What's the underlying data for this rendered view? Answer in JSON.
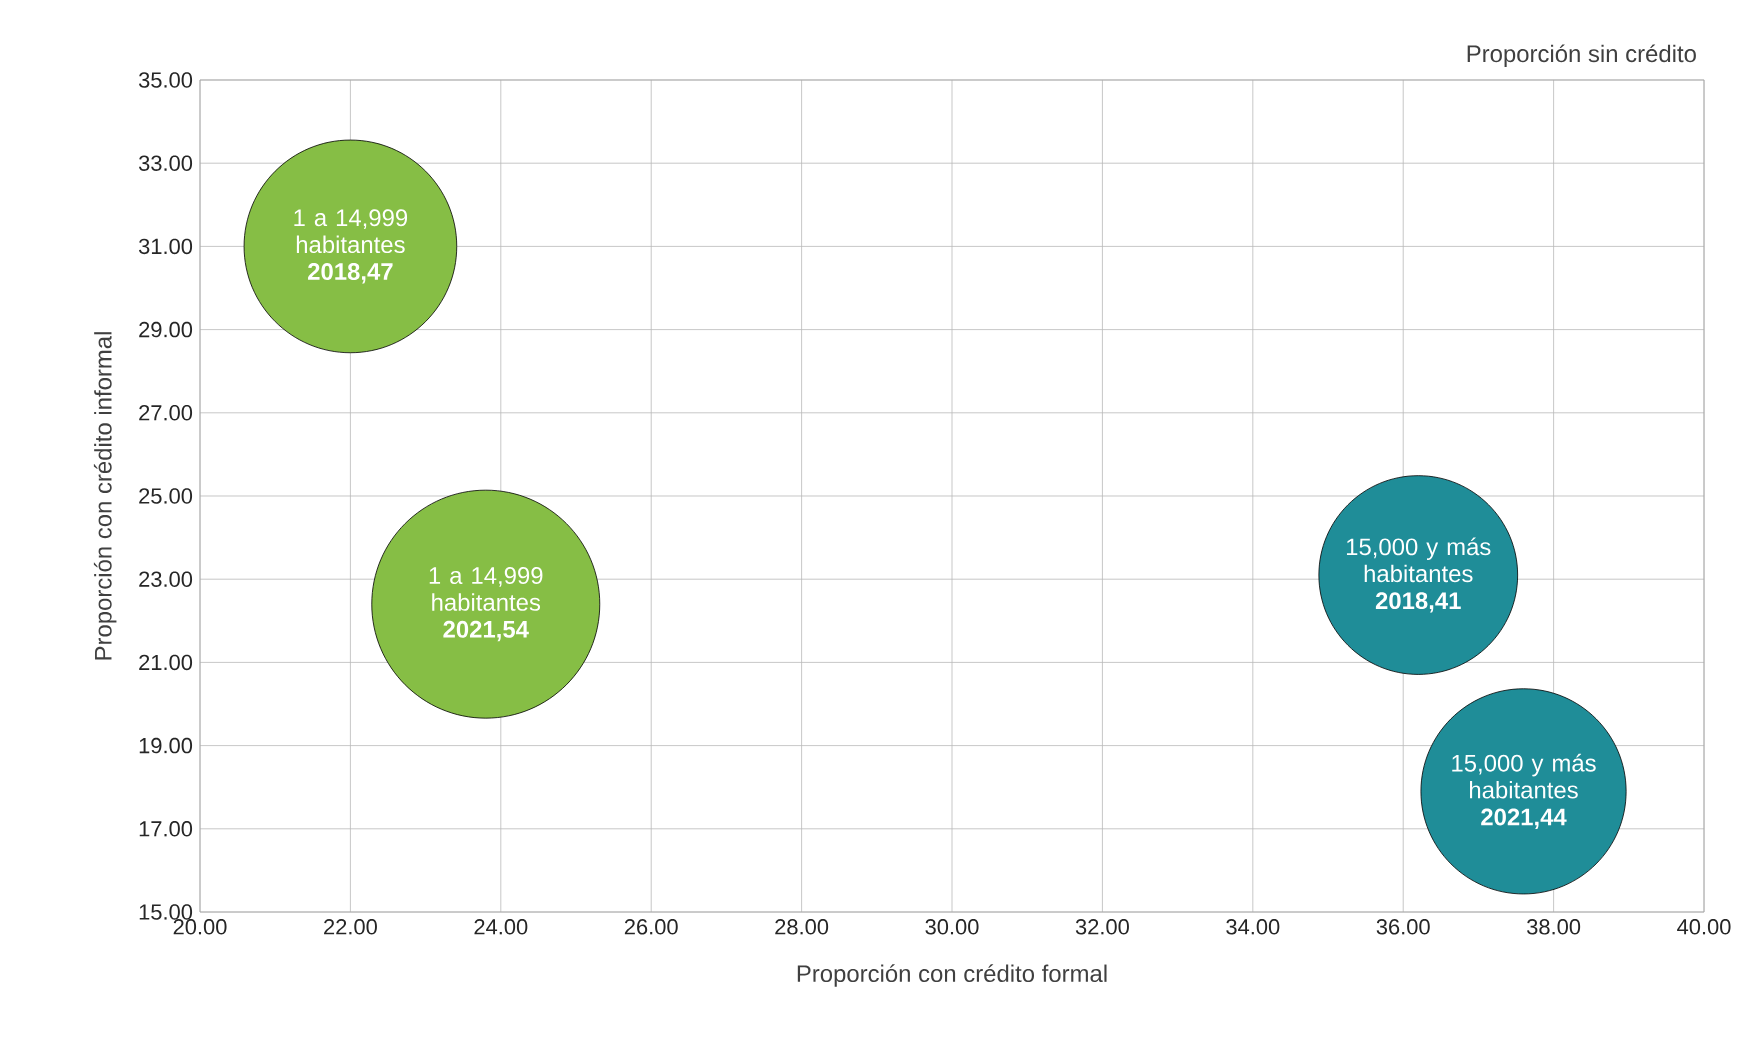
{
  "chart_data": {
    "type": "bubble",
    "xlabel": "Proporción con crédito formal",
    "ylabel": "Proporción con crédito informal",
    "series": [
      {
        "color": "#86be45",
        "x": [
          22.0,
          23.8
        ],
        "values": [
          31.0,
          22.4
        ],
        "sizes": [
          0.87,
          1.0
        ]
      },
      {
        "color": "#1f8d98",
        "x": [
          36.2,
          37.6
        ],
        "values": [
          23.1,
          17.9
        ],
        "sizes": [
          0.76,
          0.81
        ]
      }
    ],
    "annotations": [
      "Proporción sin crédito",
      {
        "text": "1 a 14,999 habitantes **2018,47**",
        "x": 22.0,
        "y": 31.0
      },
      {
        "text": "1 a 14,999 habitantes **2021,54**",
        "x": 23.8,
        "y": 22.4
      },
      {
        "text": "15,000 y más habitantes **2018,41**",
        "x": 36.2,
        "y": 23.1
      },
      {
        "text": "15,000 y más habitantes **2021,44**",
        "x": 37.6,
        "y": 17.9
      }
    ],
    "xlim": [
      20,
      40
    ],
    "ylim": [
      15,
      35
    ],
    "xticks": [
      {
        "value": 20,
        "label": "20.00"
      },
      {
        "value": 22,
        "label": "22.00"
      },
      {
        "value": 24,
        "label": "24.00"
      },
      {
        "value": 26,
        "label": "26.00"
      },
      {
        "value": 28,
        "label": "28.00"
      },
      {
        "value": 30,
        "label": "30.00"
      },
      {
        "value": 32,
        "label": "32.00"
      },
      {
        "value": 34,
        "label": "34.00"
      },
      {
        "value": 36,
        "label": "36.00"
      },
      {
        "value": 38,
        "label": "38.00"
      },
      {
        "value": 40,
        "label": "40.00"
      }
    ],
    "yticks": [
      {
        "value": 15,
        "label": "15.00"
      },
      {
        "value": 17,
        "label": "17.00"
      },
      {
        "value": 19,
        "label": "19.00"
      },
      {
        "value": 21,
        "label": "21.00"
      },
      {
        "value": 23,
        "label": "23.00"
      },
      {
        "value": 25,
        "label": "25.00"
      },
      {
        "value": 27,
        "label": "27.00"
      },
      {
        "value": 29,
        "label": "29.00"
      },
      {
        "value": 31,
        "label": "31.00"
      },
      {
        "value": 33,
        "label": "33.00"
      },
      {
        "value": 35,
        "label": "35.00"
      }
    ],
    "grid": true
  }
}
